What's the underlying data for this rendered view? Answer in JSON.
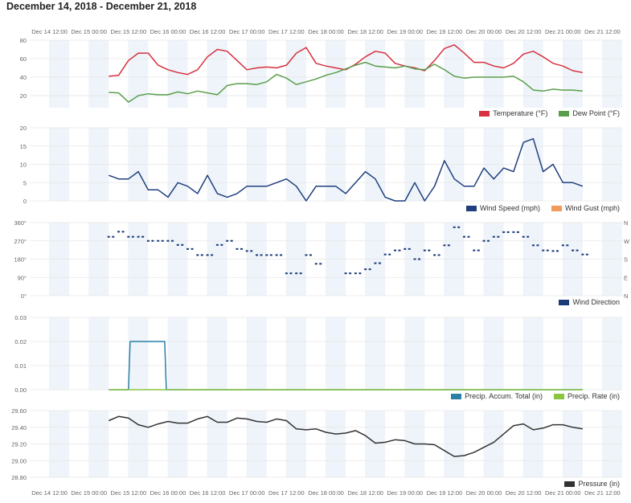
{
  "title": "December 14, 2018 - December 21, 2018",
  "colors": {
    "temperature": "#d6313e",
    "dew_point": "#5a9e4b",
    "wind_speed": "#1f3f7e",
    "wind_gust": "#f19a5c",
    "wind_direction": "#1a3a78",
    "precip_accum": "#2a7fa6",
    "precip_rate": "#8cc63f",
    "pressure": "#333333",
    "band": "#eef4fa",
    "grid": "#e6e6e6"
  },
  "x_axis": {
    "range": [
      "2018-12-14 06:00",
      "2018-12-21 18:00"
    ],
    "ticks": [
      {
        "label": "Dec 14 12:00",
        "time": "2018-12-14 12:00"
      },
      {
        "label": "Dec 15 00:00",
        "time": "2018-12-15 00:00"
      },
      {
        "label": "Dec 15 12:00",
        "time": "2018-12-15 12:00"
      },
      {
        "label": "Dec 16 00:00",
        "time": "2018-12-16 00:00"
      },
      {
        "label": "Dec 16 12:00",
        "time": "2018-12-16 12:00"
      },
      {
        "label": "Dec 17 00:00",
        "time": "2018-12-17 00:00"
      },
      {
        "label": "Dec 17 12:00",
        "time": "2018-12-17 12:00"
      },
      {
        "label": "Dec 18 00:00",
        "time": "2018-12-18 00:00"
      },
      {
        "label": "Dec 18 12:00",
        "time": "2018-12-18 12:00"
      },
      {
        "label": "Dec 19 00:00",
        "time": "2018-12-19 00:00"
      },
      {
        "label": "Dec 19 12:00",
        "time": "2018-12-19 12:00"
      },
      {
        "label": "Dec 20 00:00",
        "time": "2018-12-20 00:00"
      },
      {
        "label": "Dec 20 12:00",
        "time": "2018-12-20 12:00"
      },
      {
        "label": "Dec 21 00:00",
        "time": "2018-12-21 00:00"
      },
      {
        "label": "Dec 21 12:00",
        "time": "2018-12-21 12:00"
      }
    ],
    "band_hours": 6
  },
  "chart_data": [
    {
      "id": "temperature",
      "type": "line",
      "ylim": [
        7,
        80
      ],
      "yticks": [
        {
          "v": 20,
          "label": "20"
        },
        {
          "v": 40,
          "label": "40"
        },
        {
          "v": 60,
          "label": "60"
        },
        {
          "v": 80,
          "label": "80"
        }
      ],
      "series": [
        {
          "name": "Temperature (°F)",
          "color_key": "temperature",
          "start": "2018-12-15 06:00",
          "step_hours": 3,
          "values": [
            41,
            42,
            58,
            66,
            66,
            53,
            48,
            45,
            43,
            48,
            62,
            70,
            68,
            58,
            48,
            50,
            51,
            50,
            53,
            66,
            72,
            55,
            52,
            50,
            48,
            54,
            62,
            68,
            66,
            55,
            52,
            50,
            47,
            58,
            71,
            75,
            66,
            56,
            56,
            52,
            50,
            55,
            65,
            68,
            62,
            55,
            52,
            47,
            45
          ]
        },
        {
          "name": "Dew Point (°F)",
          "color_key": "dew_point",
          "start": "2018-12-15 06:00",
          "step_hours": 3,
          "values": [
            23.5,
            23,
            13,
            20,
            22,
            21,
            21,
            24,
            22,
            25,
            23,
            21,
            31,
            33,
            33,
            32,
            35,
            43,
            39,
            32,
            35,
            38,
            42,
            45,
            49,
            53,
            56,
            52,
            51,
            50,
            52,
            49,
            48,
            54,
            48,
            41,
            39,
            40,
            40,
            40,
            40,
            41,
            35,
            26,
            25,
            27,
            26,
            26,
            25
          ]
        }
      ]
    },
    {
      "id": "wind",
      "type": "line",
      "ylim": [
        0,
        20
      ],
      "yticks": [
        {
          "v": 0,
          "label": "0"
        },
        {
          "v": 5,
          "label": "5"
        },
        {
          "v": 10,
          "label": "10"
        },
        {
          "v": 15,
          "label": "15"
        },
        {
          "v": 20,
          "label": "20"
        }
      ],
      "series": [
        {
          "name": "Wind Speed (mph)",
          "color_key": "wind_speed",
          "start": "2018-12-15 06:00",
          "step_hours": 3,
          "values": [
            7,
            6,
            6,
            8,
            3,
            3,
            1,
            5,
            4,
            2,
            7,
            2,
            1,
            2,
            4,
            4,
            4,
            5,
            6,
            4,
            0,
            4,
            4,
            4,
            2,
            5,
            8,
            6,
            1,
            0,
            0,
            5,
            0,
            4,
            11,
            6,
            4,
            4,
            9,
            6,
            9,
            8,
            16,
            17,
            8,
            10,
            5,
            5,
            4
          ]
        },
        {
          "name": "Wind Gust (mph)",
          "color_key": "wind_gust",
          "values": []
        }
      ]
    },
    {
      "id": "wind_direction",
      "type": "scatter",
      "ylim": [
        0,
        360
      ],
      "yticks": [
        {
          "v": 0,
          "label": "0°",
          "compass": "N"
        },
        {
          "v": 90,
          "label": "90°",
          "compass": "E"
        },
        {
          "v": 180,
          "label": "180°",
          "compass": "S"
        },
        {
          "v": 270,
          "label": "270°",
          "compass": "W"
        },
        {
          "v": 360,
          "label": "360°",
          "compass": "N"
        }
      ],
      "series": [
        {
          "name": "Wind Direction",
          "color_key": "wind_direction",
          "start": "2018-12-15 06:00",
          "step_hours": 3,
          "values": [
            290,
            315,
            290,
            290,
            270,
            270,
            270,
            250,
            230,
            200,
            200,
            250,
            270,
            230,
            220,
            200,
            200,
            200,
            110,
            110,
            200,
            157,
            null,
            null,
            110,
            110,
            130,
            160,
            203,
            223,
            230,
            180,
            223,
            200,
            248,
            337,
            290,
            223,
            270,
            290,
            313,
            313,
            290,
            248,
            223,
            220,
            248,
            223,
            203
          ]
        }
      ]
    },
    {
      "id": "precipitation",
      "type": "line",
      "ylim": [
        0,
        0.03
      ],
      "yticks": [
        {
          "v": 0,
          "label": "0.00"
        },
        {
          "v": 0.01,
          "label": "0.01"
        },
        {
          "v": 0.02,
          "label": "0.02"
        },
        {
          "v": 0.03,
          "label": "0.03"
        }
      ],
      "series": [
        {
          "name": "Precip. Accum. Total (in)",
          "color_key": "precip_accum",
          "points": [
            [
              "2018-12-15 06:00",
              0
            ],
            [
              "2018-12-15 12:00",
              0
            ],
            [
              "2018-12-15 12:30",
              0.02
            ],
            [
              "2018-12-15 23:00",
              0.02
            ],
            [
              "2018-12-15 23:30",
              0
            ],
            [
              "2018-12-21 06:00",
              0
            ]
          ]
        },
        {
          "name": "Precip. Rate (in)",
          "color_key": "precip_rate",
          "points": [
            [
              "2018-12-15 06:00",
              0
            ],
            [
              "2018-12-21 06:00",
              0
            ]
          ]
        }
      ]
    },
    {
      "id": "pressure",
      "type": "line",
      "ylim": [
        28.8,
        29.6
      ],
      "yticks": [
        {
          "v": 28.8,
          "label": "28.80"
        },
        {
          "v": 29.0,
          "label": "29.00"
        },
        {
          "v": 29.2,
          "label": "29.20"
        },
        {
          "v": 29.4,
          "label": "29.40"
        },
        {
          "v": 29.6,
          "label": "29.60"
        }
      ],
      "series": [
        {
          "name": "Pressure (in)",
          "color_key": "pressure",
          "start": "2018-12-15 06:00",
          "step_hours": 3,
          "values": [
            29.48,
            29.53,
            29.51,
            29.43,
            29.4,
            29.44,
            29.47,
            29.45,
            29.45,
            29.5,
            29.53,
            29.46,
            29.46,
            29.51,
            29.5,
            29.47,
            29.46,
            29.5,
            29.48,
            29.38,
            29.37,
            29.38,
            29.34,
            29.32,
            29.33,
            29.36,
            29.3,
            29.21,
            29.22,
            29.25,
            29.24,
            29.2,
            29.2,
            29.19,
            29.12,
            29.05,
            29.06,
            29.1,
            29.16,
            29.22,
            29.32,
            29.42,
            29.44,
            29.37,
            29.39,
            29.43,
            29.43,
            29.4,
            29.38
          ]
        }
      ]
    }
  ]
}
